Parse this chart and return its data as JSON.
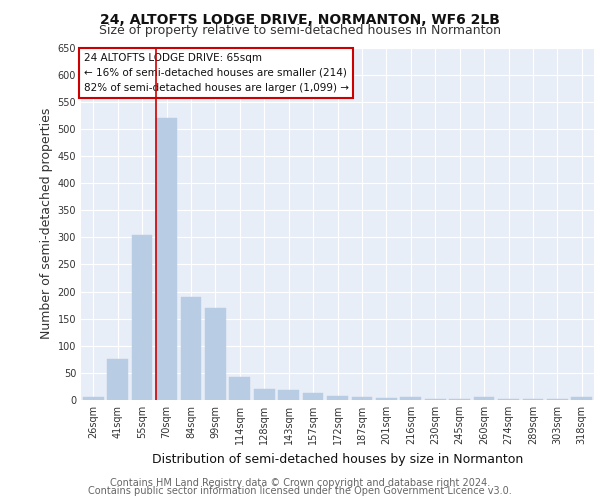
{
  "title": "24, ALTOFTS LODGE DRIVE, NORMANTON, WF6 2LB",
  "subtitle": "Size of property relative to semi-detached houses in Normanton",
  "xlabel": "Distribution of semi-detached houses by size in Normanton",
  "ylabel": "Number of semi-detached properties",
  "footer_line1": "Contains HM Land Registry data © Crown copyright and database right 2024.",
  "footer_line2": "Contains public sector information licensed under the Open Government Licence v3.0.",
  "categories": [
    "26sqm",
    "41sqm",
    "55sqm",
    "70sqm",
    "84sqm",
    "99sqm",
    "114sqm",
    "128sqm",
    "143sqm",
    "157sqm",
    "172sqm",
    "187sqm",
    "201sqm",
    "216sqm",
    "230sqm",
    "245sqm",
    "260sqm",
    "274sqm",
    "289sqm",
    "303sqm",
    "318sqm"
  ],
  "values": [
    5,
    75,
    305,
    520,
    190,
    170,
    42,
    20,
    18,
    12,
    8,
    5,
    4,
    5,
    1,
    1,
    5,
    1,
    1,
    1,
    5
  ],
  "bar_color": "#b8cce4",
  "highlight_line_color": "#cc0000",
  "annotation_text_line1": "24 ALTOFTS LODGE DRIVE: 65sqm",
  "annotation_text_line2": "← 16% of semi-detached houses are smaller (214)",
  "annotation_text_line3": "82% of semi-detached houses are larger (1,099) →",
  "annotation_box_edge_color": "#cc0000",
  "ylim": [
    0,
    650
  ],
  "yticks": [
    0,
    50,
    100,
    150,
    200,
    250,
    300,
    350,
    400,
    450,
    500,
    550,
    600,
    650
  ],
  "background_color": "#e8eef7",
  "grid_color": "#ffffff",
  "title_fontsize": 10,
  "subtitle_fontsize": 9,
  "axis_label_fontsize": 9,
  "tick_fontsize": 7,
  "footer_fontsize": 7,
  "annotation_fontsize": 7.5
}
